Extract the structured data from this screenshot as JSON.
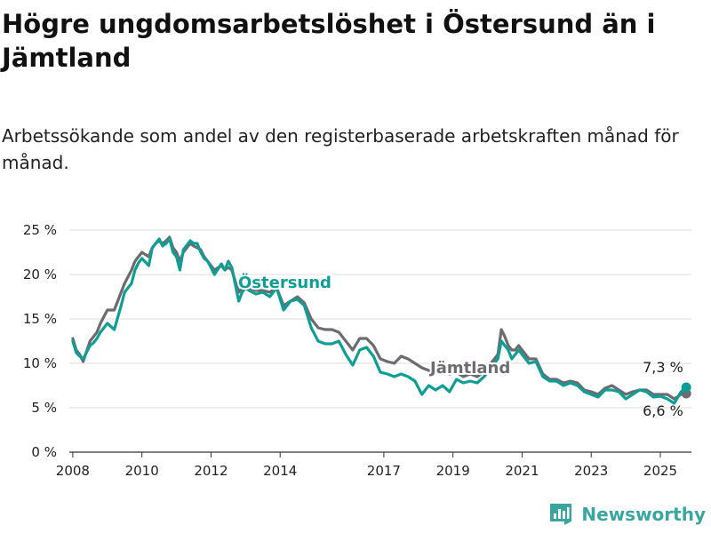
{
  "title": "Högre ungdomsarbetslöshet i Östersund än i Jämtland",
  "subtitle": "Arbetssökande som andel av den registerbaserade arbetskraften månad för månad.",
  "brand": {
    "name": "Newsworthy",
    "icon": "bar-chart-logo-icon"
  },
  "colors": {
    "ostersund": "#0f9e96",
    "jamtland": "#6e6b70",
    "grid": "#dddddd",
    "axis": "#333333"
  },
  "chart_data": {
    "type": "line",
    "y_unit": "%",
    "ylim": [
      0,
      25
    ],
    "xlim": [
      2007.9,
      2025.9
    ],
    "y_ticks": [
      0,
      5,
      10,
      15,
      20,
      25
    ],
    "y_tick_labels": [
      "0 %",
      "5 %",
      "10 %",
      "15 %",
      "20 %",
      "25 %"
    ],
    "x_ticks": [
      2008,
      2010,
      2012,
      2014,
      2017,
      2019,
      2021,
      2023,
      2025
    ],
    "x_tick_labels": [
      "2008",
      "2010",
      "2012",
      "2014",
      "2017",
      "2019",
      "2021",
      "2023",
      "2025"
    ],
    "grid": "horizontal",
    "legend": "inline",
    "series": [
      {
        "name": "Östersund",
        "label": "Östersund",
        "x": [
          2008.0,
          2008.1,
          2008.2,
          2008.3,
          2008.5,
          2008.6,
          2008.7,
          2008.8,
          2009.0,
          2009.2,
          2009.4,
          2009.5,
          2009.7,
          2009.8,
          2009.9,
          2010.0,
          2010.2,
          2010.3,
          2010.4,
          2010.5,
          2010.6,
          2010.7,
          2010.8,
          2010.9,
          2011.0,
          2011.1,
          2011.2,
          2011.4,
          2011.5,
          2011.6,
          2011.7,
          2011.8,
          2011.9,
          2012.0,
          2012.1,
          2012.3,
          2012.4,
          2012.5,
          2012.6,
          2012.8,
          2012.9,
          2013.0,
          2013.1,
          2013.3,
          2013.5,
          2013.7,
          2013.9,
          2014.1,
          2014.3,
          2014.5,
          2014.7,
          2014.9,
          2015.1,
          2015.3,
          2015.5,
          2015.7,
          2015.9,
          2016.1,
          2016.3,
          2016.5,
          2016.7,
          2016.9,
          2017.1,
          2017.3,
          2017.5,
          2017.7,
          2017.9,
          2018.1,
          2018.3,
          2018.5,
          2018.7,
          2018.9,
          2019.1,
          2019.3,
          2019.5,
          2019.7,
          2019.9,
          2020.1,
          2020.3,
          2020.4,
          2020.5,
          2020.6,
          2020.7,
          2020.8,
          2020.9,
          2021.0,
          2021.2,
          2021.4,
          2021.6,
          2021.8,
          2022.0,
          2022.2,
          2022.4,
          2022.6,
          2022.8,
          2023.0,
          2023.2,
          2023.4,
          2023.6,
          2023.8,
          2024.0,
          2024.2,
          2024.4,
          2024.6,
          2024.8,
          2025.0,
          2025.2,
          2025.4,
          2025.6,
          2025.75
        ],
        "y": [
          12.5,
          11.2,
          10.8,
          10.5,
          12.0,
          12.3,
          12.8,
          13.5,
          14.5,
          13.8,
          16.5,
          18.0,
          19.0,
          20.5,
          21.3,
          21.8,
          21.0,
          23.0,
          23.5,
          24.0,
          23.2,
          23.5,
          24.0,
          22.5,
          22.0,
          20.5,
          22.8,
          23.8,
          23.5,
          23.5,
          22.5,
          21.8,
          21.5,
          20.8,
          20.0,
          21.2,
          20.5,
          21.5,
          20.8,
          17.0,
          18.0,
          18.5,
          18.2,
          17.8,
          18.0,
          17.5,
          18.5,
          16.0,
          17.0,
          17.2,
          16.5,
          14.0,
          12.5,
          12.2,
          12.2,
          12.5,
          11.0,
          9.8,
          11.5,
          11.8,
          10.8,
          9.0,
          8.8,
          8.5,
          8.8,
          8.5,
          8.0,
          6.5,
          7.5,
          7.0,
          7.5,
          6.8,
          8.2,
          7.8,
          8.0,
          7.8,
          8.5,
          9.5,
          10.5,
          12.5,
          12.0,
          11.5,
          10.5,
          11.0,
          11.5,
          11.0,
          10.0,
          10.2,
          8.5,
          8.0,
          8.0,
          7.5,
          7.8,
          7.5,
          6.8,
          6.5,
          6.2,
          7.0,
          7.0,
          6.8,
          6.0,
          6.5,
          7.0,
          6.8,
          6.2,
          6.3,
          6.0,
          5.5,
          6.8,
          7.3
        ]
      },
      {
        "name": "Jämtland",
        "label": "Jämtland",
        "x": [
          2008.0,
          2008.1,
          2008.2,
          2008.3,
          2008.5,
          2008.6,
          2008.7,
          2008.8,
          2009.0,
          2009.2,
          2009.4,
          2009.5,
          2009.7,
          2009.8,
          2009.9,
          2010.0,
          2010.2,
          2010.3,
          2010.4,
          2010.5,
          2010.6,
          2010.7,
          2010.8,
          2010.9,
          2011.0,
          2011.1,
          2011.2,
          2011.4,
          2011.5,
          2011.6,
          2011.7,
          2011.8,
          2011.9,
          2012.0,
          2012.1,
          2012.3,
          2012.4,
          2012.5,
          2012.6,
          2012.8,
          2012.9,
          2013.0,
          2013.1,
          2013.3,
          2013.5,
          2013.7,
          2013.9,
          2014.1,
          2014.3,
          2014.5,
          2014.7,
          2014.9,
          2015.1,
          2015.3,
          2015.5,
          2015.7,
          2015.9,
          2016.1,
          2016.3,
          2016.5,
          2016.7,
          2016.9,
          2017.1,
          2017.3,
          2017.5,
          2017.7,
          2017.9,
          2018.1,
          2018.3,
          2018.5,
          2018.7,
          2018.9,
          2019.1,
          2019.3,
          2019.5,
          2019.7,
          2019.9,
          2020.1,
          2020.3,
          2020.4,
          2020.5,
          2020.6,
          2020.7,
          2020.8,
          2020.9,
          2021.0,
          2021.2,
          2021.4,
          2021.6,
          2021.8,
          2022.0,
          2022.2,
          2022.4,
          2022.6,
          2022.8,
          2023.0,
          2023.2,
          2023.4,
          2023.6,
          2023.8,
          2024.0,
          2024.2,
          2024.4,
          2024.6,
          2024.8,
          2025.0,
          2025.2,
          2025.4,
          2025.6,
          2025.75
        ],
        "y": [
          12.8,
          11.5,
          11.0,
          10.2,
          12.5,
          13.0,
          13.5,
          14.5,
          16.0,
          16.0,
          18.0,
          19.0,
          20.5,
          21.5,
          22.0,
          22.5,
          22.0,
          23.0,
          23.5,
          23.8,
          23.5,
          23.8,
          24.2,
          23.0,
          22.5,
          21.5,
          22.5,
          23.5,
          23.2,
          23.0,
          22.8,
          22.0,
          21.5,
          21.0,
          20.5,
          21.0,
          20.5,
          20.8,
          20.5,
          18.0,
          18.5,
          18.5,
          18.5,
          18.2,
          18.2,
          18.0,
          18.5,
          16.5,
          17.0,
          17.5,
          16.8,
          15.0,
          14.0,
          13.8,
          13.8,
          13.5,
          12.5,
          11.5,
          12.8,
          12.8,
          12.0,
          10.5,
          10.2,
          10.0,
          10.8,
          10.5,
          10.0,
          9.5,
          9.2,
          9.0,
          9.5,
          8.8,
          9.0,
          8.5,
          8.8,
          8.5,
          9.0,
          10.0,
          11.0,
          13.8,
          13.0,
          12.0,
          11.5,
          11.5,
          12.0,
          11.5,
          10.5,
          10.5,
          8.8,
          8.2,
          8.2,
          7.8,
          8.0,
          7.8,
          7.0,
          6.8,
          6.5,
          7.2,
          7.5,
          7.0,
          6.5,
          6.8,
          7.0,
          7.0,
          6.5,
          6.5,
          6.5,
          6.0,
          6.5,
          6.6
        ]
      }
    ],
    "end_labels": [
      "7,3 %",
      "6,6 %"
    ]
  }
}
